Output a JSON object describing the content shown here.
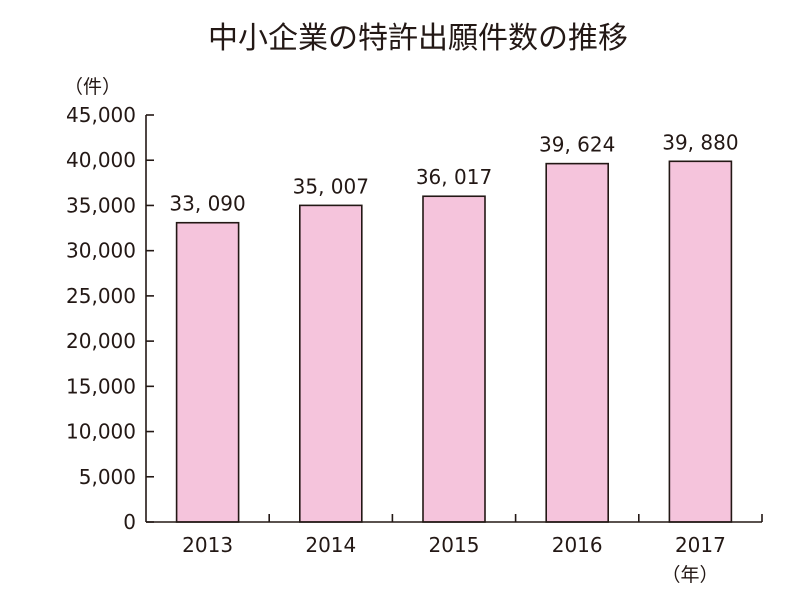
{
  "chart_data": {
    "type": "bar",
    "title": "中小企業の特許出願件数の推移",
    "y_unit_label": "（件）",
    "x_unit_label": "（年）",
    "categories": [
      "2013",
      "2014",
      "2015",
      "2016",
      "2017"
    ],
    "values": [
      33090,
      35007,
      36017,
      39624,
      39880
    ],
    "data_labels": [
      "33, 090",
      "35, 007",
      "36, 017",
      "39, 624",
      "39, 880"
    ],
    "yticks": [
      "0",
      "5,000",
      "10,000",
      "15,000",
      "20,000",
      "25,000",
      "30,000",
      "35,000",
      "40,000",
      "45,000"
    ],
    "ylim": [
      0,
      45000
    ],
    "ystep": 5000,
    "grid": false,
    "bar_color": "#f5c4dc",
    "axis_color": "#231815"
  }
}
